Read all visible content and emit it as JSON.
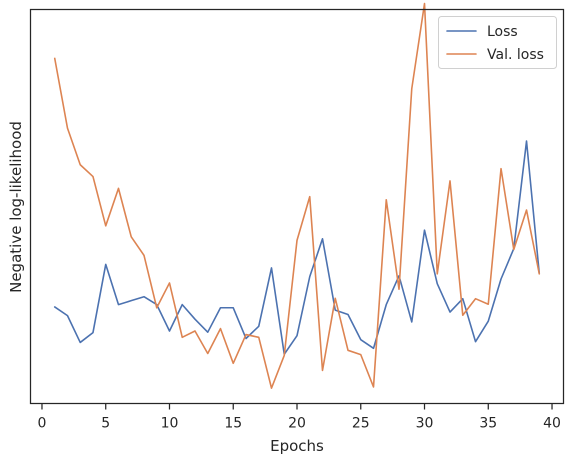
{
  "chart_data": {
    "type": "line",
    "title": "",
    "xlabel": "Epochs",
    "ylabel": "Negative log-likelihood",
    "xlim": [
      -0.9,
      40.9
    ],
    "ylim": [
      0,
      100
    ],
    "y_ticks_shown": false,
    "x_ticks": [
      0,
      5,
      10,
      15,
      20,
      25,
      30,
      35,
      40
    ],
    "x_tick_labels": [
      "0",
      "5",
      "10",
      "15",
      "20",
      "25",
      "30",
      "35",
      "40"
    ],
    "grid": false,
    "legend_position": "top-right",
    "x": [
      1,
      2,
      3,
      4,
      5,
      6,
      7,
      8,
      9,
      10,
      11,
      12,
      13,
      14,
      15,
      16,
      17,
      18,
      19,
      20,
      21,
      22,
      23,
      24,
      25,
      26,
      27,
      28,
      29,
      30,
      31,
      32,
      33,
      34,
      35,
      36,
      37,
      38,
      39
    ],
    "series": [
      {
        "name": "Loss",
        "color": "#4c72b0",
        "values": [
          24.5,
          22.3,
          15.5,
          18.0,
          35.3,
          25.1,
          26.1,
          27.1,
          25.1,
          18.4,
          25.1,
          21.4,
          18.1,
          24.3,
          24.3,
          16.5,
          19.6,
          34.4,
          12.5,
          17.2,
          32.2,
          41.8,
          23.7,
          22.6,
          16.2,
          14.0,
          25.1,
          32.4,
          20.7,
          44.0,
          30.4,
          23.2,
          26.6,
          15.7,
          20.9,
          31.6,
          39.3,
          66.6,
          33.0
        ]
      },
      {
        "name": "Val. loss",
        "color": "#dd8452",
        "values": [
          87.6,
          69.9,
          60.6,
          57.6,
          45.1,
          54.6,
          42.3,
          37.6,
          24.3,
          30.6,
          16.8,
          18.4,
          12.7,
          19.0,
          10.2,
          17.5,
          16.8,
          3.9,
          12.2,
          41.4,
          52.5,
          8.4,
          26.7,
          13.5,
          12.4,
          4.2,
          51.7,
          29.0,
          79.9,
          101.5,
          32.9,
          56.5,
          22.4,
          26.6,
          25.2,
          59.6,
          39.1,
          49.1,
          32.9
        ]
      }
    ]
  }
}
